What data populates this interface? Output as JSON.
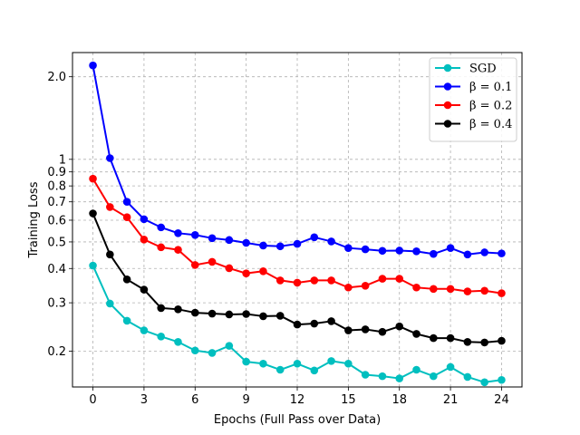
{
  "chart_data": {
    "type": "line",
    "title": "",
    "xlabel": "Epochs (Full Pass over Data)",
    "ylabel": "Training Loss",
    "yscale": "log",
    "xlim": [
      -1.2,
      25.2
    ],
    "ylim": [
      0.148,
      2.45
    ],
    "grid": true,
    "legend_position": "top-right",
    "x": [
      0,
      1,
      2,
      3,
      4,
      5,
      6,
      7,
      8,
      9,
      10,
      11,
      12,
      13,
      14,
      15,
      16,
      17,
      18,
      19,
      20,
      21,
      22,
      23,
      24
    ],
    "xticks": [
      0,
      3,
      6,
      9,
      12,
      15,
      18,
      21,
      24
    ],
    "xtick_labels": [
      "0",
      "3",
      "6",
      "9",
      "12",
      "15",
      "18",
      "21",
      "24"
    ],
    "yticks": [
      0.2,
      0.3,
      0.4,
      0.5,
      0.6,
      0.7,
      0.8,
      0.9,
      1.0,
      2.0
    ],
    "ytick_labels": [
      "0.2",
      "0.3",
      "0.4",
      "0.5",
      "0.6",
      "0.7",
      "0.8",
      "0.9",
      "1",
      "2.0"
    ],
    "series": [
      {
        "name": "SGD",
        "color": "#00bfbf",
        "values": [
          0.41,
          0.298,
          0.258,
          0.238,
          0.226,
          0.216,
          0.201,
          0.197,
          0.209,
          0.183,
          0.18,
          0.171,
          0.18,
          0.17,
          0.184,
          0.18,
          0.164,
          0.162,
          0.159,
          0.171,
          0.162,
          0.175,
          0.161,
          0.154,
          0.157
        ]
      },
      {
        "name": "β = 0.1",
        "color": "#0000ff",
        "values": [
          2.2,
          1.01,
          0.7,
          0.605,
          0.565,
          0.538,
          0.53,
          0.516,
          0.508,
          0.496,
          0.485,
          0.482,
          0.492,
          0.52,
          0.502,
          0.475,
          0.47,
          0.464,
          0.465,
          0.462,
          0.452,
          0.475,
          0.45,
          0.458,
          0.454
        ]
      },
      {
        "name": "β = 0.2",
        "color": "#ff0000",
        "values": [
          0.85,
          0.67,
          0.615,
          0.51,
          0.478,
          0.468,
          0.412,
          0.423,
          0.401,
          0.384,
          0.391,
          0.362,
          0.355,
          0.362,
          0.362,
          0.341,
          0.346,
          0.367,
          0.367,
          0.341,
          0.337,
          0.337,
          0.33,
          0.332,
          0.325
        ]
      },
      {
        "name": "β = 0.4",
        "color": "#000000",
        "values": [
          0.635,
          0.45,
          0.365,
          0.335,
          0.287,
          0.284,
          0.276,
          0.274,
          0.272,
          0.273,
          0.268,
          0.269,
          0.25,
          0.252,
          0.257,
          0.238,
          0.24,
          0.235,
          0.246,
          0.231,
          0.223,
          0.223,
          0.216,
          0.215,
          0.218
        ]
      }
    ]
  }
}
